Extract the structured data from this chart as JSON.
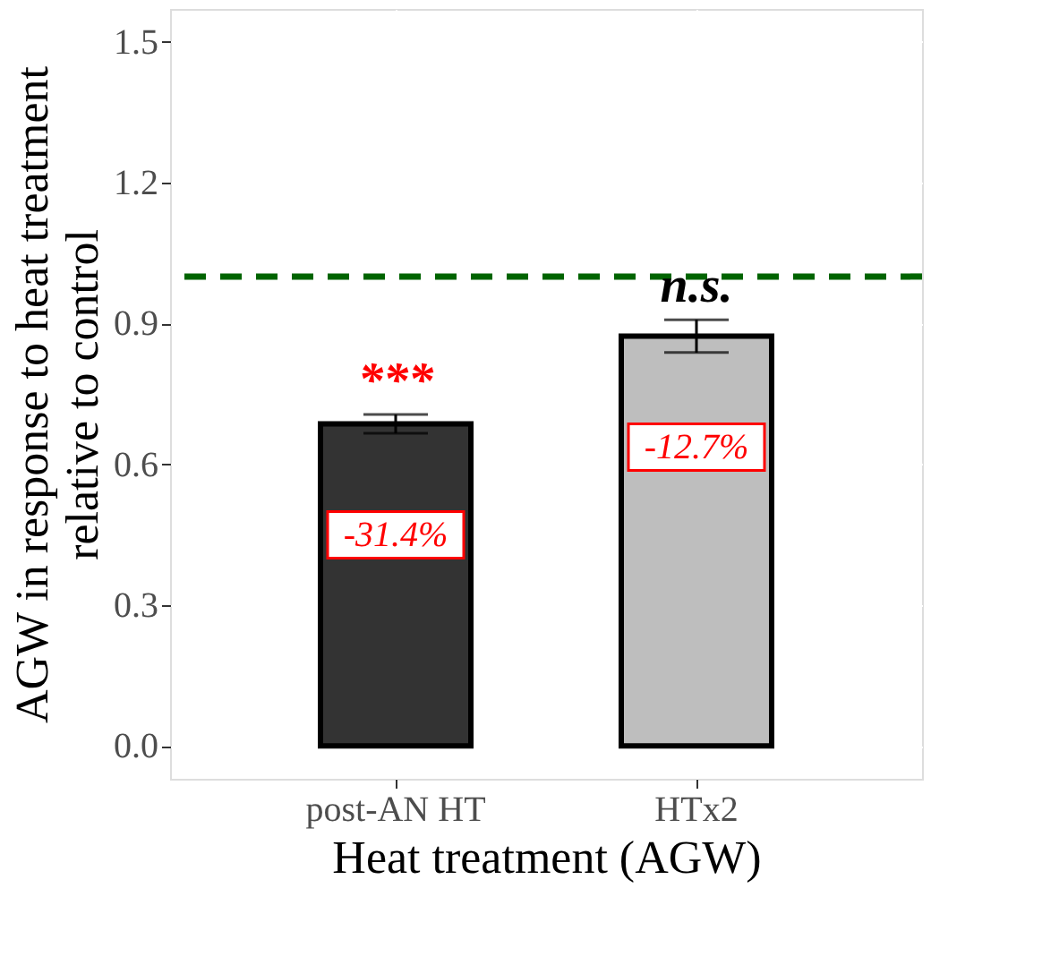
{
  "chart_data": {
    "type": "bar",
    "xlabel": "Heat treatment (AGW)",
    "ylabel": "AGW in response to heat treatment\nrelative to control",
    "categories": [
      "post-AN HT",
      "HTx2"
    ],
    "values": [
      0.686,
      0.873
    ],
    "colors": [
      "#333333",
      "#bebebe"
    ],
    "errors": [
      0.02,
      0.035
    ],
    "ylim": [
      -0.07,
      1.57
    ],
    "yticks": [
      {
        "value": 0,
        "label": "0.0"
      },
      {
        "value": 0.3,
        "label": "0.3"
      },
      {
        "value": 0.6,
        "label": "0.6"
      },
      {
        "value": 0.9,
        "label": "0.9"
      },
      {
        "value": 1.2,
        "label": "1.2"
      },
      {
        "value": 1.5,
        "label": "1.5"
      }
    ],
    "grid": true,
    "ref_lines": [
      {
        "axis": "y",
        "value": 1.0,
        "color": "#006400",
        "line_style": "dashed"
      }
    ],
    "annotations": [
      "***",
      "n.s.",
      "-31.4%",
      "-12.7%"
    ]
  }
}
